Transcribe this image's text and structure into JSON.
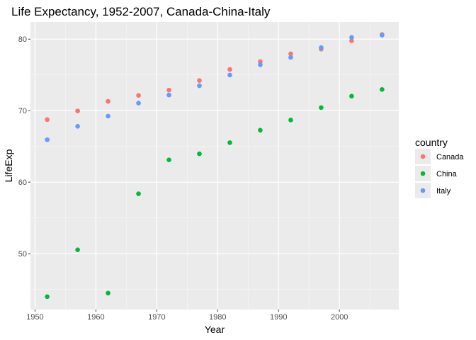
{
  "chart_data": {
    "type": "scatter",
    "title": "Life Expectancy, 1952-2007, Canada-China-Italy",
    "xlabel": "Year",
    "ylabel": "LifeExp",
    "xlim": [
      1949.25,
      2009.75
    ],
    "ylim": [
      42.2,
      82.4
    ],
    "x_ticks": [
      1950,
      1960,
      1970,
      1980,
      1990,
      2000
    ],
    "y_ticks": [
      50,
      60,
      70,
      80
    ],
    "grid": true,
    "legend": {
      "title": "country",
      "placement": "right"
    },
    "series": [
      {
        "name": "Canada",
        "color": "#F8766D",
        "x": [
          1952,
          1957,
          1962,
          1967,
          1972,
          1977,
          1982,
          1987,
          1992,
          1997,
          2002,
          2007
        ],
        "values": [
          68.75,
          69.96,
          71.3,
          72.13,
          72.88,
          74.21,
          75.76,
          76.86,
          77.95,
          78.61,
          79.77,
          80.65
        ]
      },
      {
        "name": "China",
        "color": "#00BA38",
        "x": [
          1952,
          1957,
          1962,
          1967,
          1972,
          1977,
          1982,
          1987,
          1992,
          1997,
          2002,
          2007
        ],
        "values": [
          44.0,
          50.55,
          44.5,
          58.38,
          63.12,
          63.97,
          65.53,
          67.27,
          68.69,
          70.43,
          72.03,
          72.96
        ]
      },
      {
        "name": "Italy",
        "color": "#619CFF",
        "x": [
          1952,
          1957,
          1962,
          1967,
          1972,
          1977,
          1982,
          1987,
          1992,
          1997,
          2002,
          2007
        ],
        "values": [
          65.94,
          67.81,
          69.24,
          71.06,
          72.19,
          73.48,
          74.98,
          76.42,
          77.44,
          78.82,
          80.24,
          80.55
        ]
      }
    ]
  }
}
